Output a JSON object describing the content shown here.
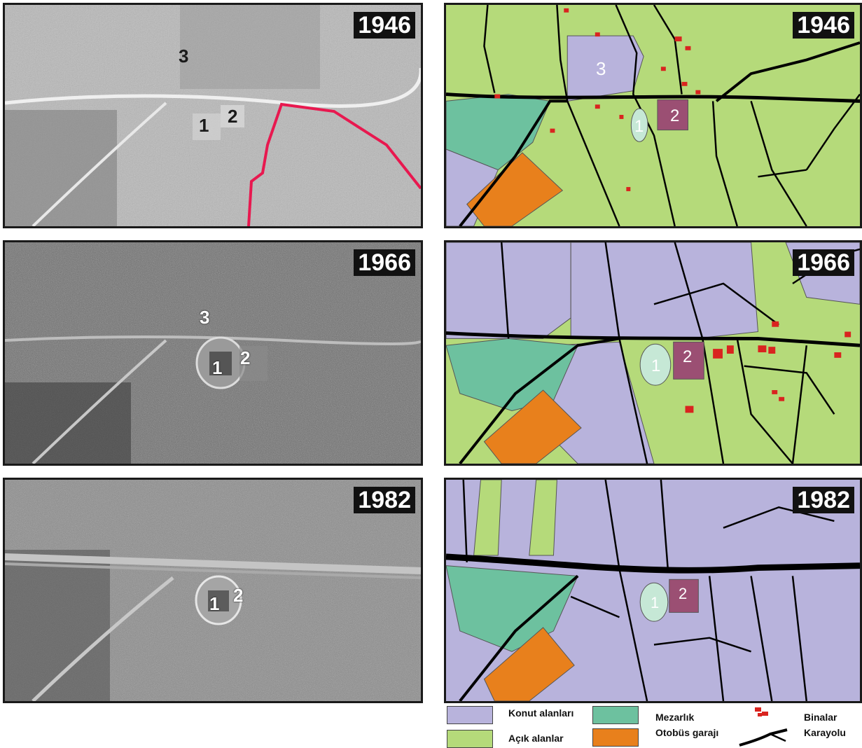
{
  "panels": {
    "p1946": {
      "year": "1946",
      "markers": [
        "1",
        "2",
        "3"
      ]
    },
    "p1966": {
      "year": "1966",
      "markers": [
        "1",
        "2",
        "3"
      ]
    },
    "p1982": {
      "year": "1982",
      "markers": [
        "1",
        "2"
      ]
    }
  },
  "legend": {
    "konut": "Konut alanları",
    "acik": "Açık alanlar",
    "mezarlik": "Mezarlık",
    "otobus": "Otobüs garajı",
    "binalar": "Binalar",
    "karayolu": "Karayolu"
  },
  "colors": {
    "konut": "#b8b3dc",
    "acik": "#b5da7a",
    "mezarlik": "#6dc19f",
    "otobus": "#e8801c",
    "binalar": "#d9241f",
    "marker1": "#c6e8d6",
    "marker2": "#9b4f73",
    "road": "#000000",
    "highlight_route": "#e8184f"
  }
}
